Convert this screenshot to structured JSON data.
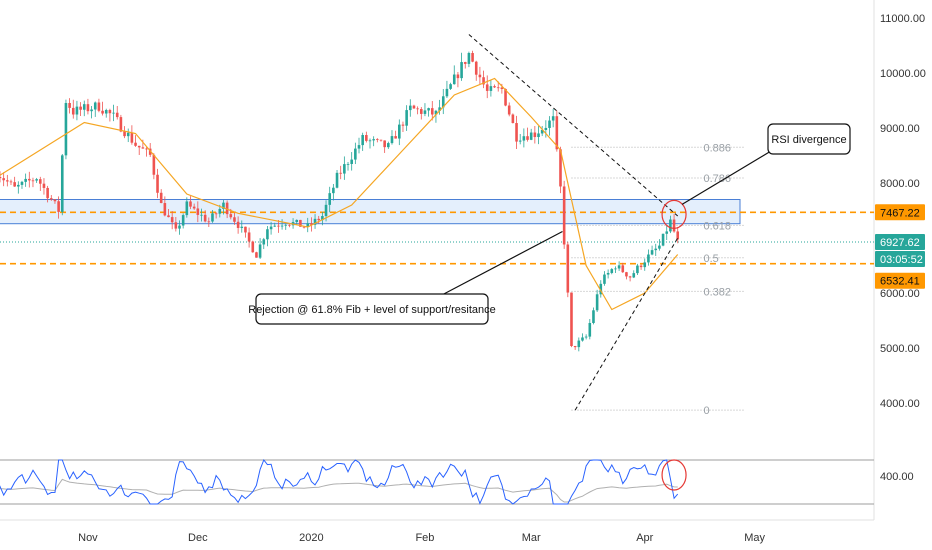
{
  "chart_data": {
    "type": "candlestick",
    "x_ticks": [
      "Nov",
      "Dec",
      "2020",
      "Feb",
      "Mar",
      "Apr",
      "May"
    ],
    "price_ticks": [
      "11000.00",
      "10000.00",
      "9000.00",
      "8000.00",
      "7000.00",
      "6000.00",
      "5000.00",
      "4000.00"
    ],
    "rsi_tick": "400.00",
    "ylim": [
      3500,
      11300
    ],
    "price_path": [
      [
        "2019-10-07",
        8200
      ],
      [
        "2019-10-12",
        7900
      ],
      [
        "2019-10-18",
        8100
      ],
      [
        "2019-10-24",
        7500
      ],
      [
        "2019-10-26",
        9500
      ],
      [
        "2019-10-28",
        9300
      ],
      [
        "2019-11-04",
        9400
      ],
      [
        "2019-11-08",
        9200
      ],
      [
        "2019-11-14",
        8700
      ],
      [
        "2019-11-18",
        8500
      ],
      [
        "2019-11-21",
        7600
      ],
      [
        "2019-11-25",
        7100
      ],
      [
        "2019-11-28",
        7600
      ],
      [
        "2019-12-04",
        7300
      ],
      [
        "2019-12-08",
        7600
      ],
      [
        "2019-12-12",
        7250
      ],
      [
        "2019-12-17",
        6700
      ],
      [
        "2019-12-20",
        7200
      ],
      [
        "2019-12-25",
        7300
      ],
      [
        "2019-12-31",
        7200
      ],
      [
        "2020-01-04",
        7400
      ],
      [
        "2020-01-08",
        8100
      ],
      [
        "2020-01-15",
        8800
      ],
      [
        "2020-01-22",
        8650
      ],
      [
        "2020-01-28",
        9350
      ],
      [
        "2020-02-04",
        9250
      ],
      [
        "2020-02-10",
        10000
      ],
      [
        "2020-02-13",
        10350
      ],
      [
        "2020-02-18",
        9650
      ],
      [
        "2020-02-22",
        9700
      ],
      [
        "2020-02-26",
        8850
      ],
      [
        "2020-03-02",
        8900
      ],
      [
        "2020-03-07",
        9150
      ],
      [
        "2020-03-09",
        7900
      ],
      [
        "2020-03-12",
        5000
      ],
      [
        "2020-03-16",
        5200
      ],
      [
        "2020-03-20",
        6200
      ],
      [
        "2020-03-24",
        6500
      ],
      [
        "2020-03-28",
        6300
      ],
      [
        "2020-04-01",
        6600
      ],
      [
        "2020-04-05",
        6850
      ],
      [
        "2020-04-08",
        7300
      ],
      [
        "2020-04-10",
        6927.62
      ]
    ],
    "candle_span": [
      "2019-10-07",
      "2020-04-10"
    ],
    "moving_average_path": [
      [
        "2019-10-07",
        8100
      ],
      [
        "2019-10-31",
        9100
      ],
      [
        "2019-11-14",
        8900
      ],
      [
        "2019-11-28",
        7800
      ],
      [
        "2019-12-12",
        7450
      ],
      [
        "2019-12-31",
        7200
      ],
      [
        "2020-01-12",
        7600
      ],
      [
        "2020-01-26",
        8600
      ],
      [
        "2020-02-09",
        9600
      ],
      [
        "2020-02-20",
        9900
      ],
      [
        "2020-03-01",
        9200
      ],
      [
        "2020-03-09",
        8600
      ],
      [
        "2020-03-16",
        6500
      ],
      [
        "2020-03-23",
        5700
      ],
      [
        "2020-04-01",
        6000
      ],
      [
        "2020-04-10",
        6700
      ]
    ],
    "fib_levels": [
      {
        "label": "0.886",
        "price": 8650
      },
      {
        "label": "0.786",
        "price": 8090
      },
      {
        "label": "0.618",
        "price": 7230
      },
      {
        "label": "0.5",
        "price": 6640
      },
      {
        "label": "0.382",
        "price": 6030
      },
      {
        "label": "0",
        "price": 3870
      }
    ],
    "fib_span": [
      "2020-03-12",
      "2020-04-28"
    ],
    "zone": {
      "from": "2019-10-07",
      "to": "2020-04-27",
      "low": 7260,
      "high": 7700
    },
    "horizontal_levels": [
      {
        "price": 7467.22,
        "label": "7467.22",
        "color": "#ff9800",
        "style": "dashed"
      },
      {
        "price": 6532.41,
        "label": "6532.41",
        "color": "#ff9800",
        "style": "dashed"
      },
      {
        "price": 6927.62,
        "label": "6927.62",
        "color": "#26a69a",
        "style": "dotted"
      }
    ],
    "countdown": "03:05:52",
    "trendlines": [
      {
        "from": [
          "2020-02-13",
          10700
        ],
        "to": [
          "2020-04-10",
          7400
        ]
      },
      {
        "from": [
          "2020-03-13",
          3870
        ],
        "to": [
          "2020-04-10",
          7000
        ]
      }
    ],
    "annotations": [
      {
        "text": "RSI divergence",
        "target": [
          "2020-04-09",
          7430
        ]
      },
      {
        "text": "Rejection @ 61.8% Fib + level of support/resitance",
        "target": [
          "2020-03-15",
          7300
        ]
      }
    ],
    "grid": false,
    "colors": {
      "up": "#26a69a",
      "down": "#ef5350",
      "ma": "#f5a623",
      "zone_fill": "#dbe9fb",
      "zone_border": "#4a7fd6",
      "rsi": "#2962ff",
      "rsi_secondary": "#b0b0b0",
      "circle": "#e53935"
    }
  }
}
